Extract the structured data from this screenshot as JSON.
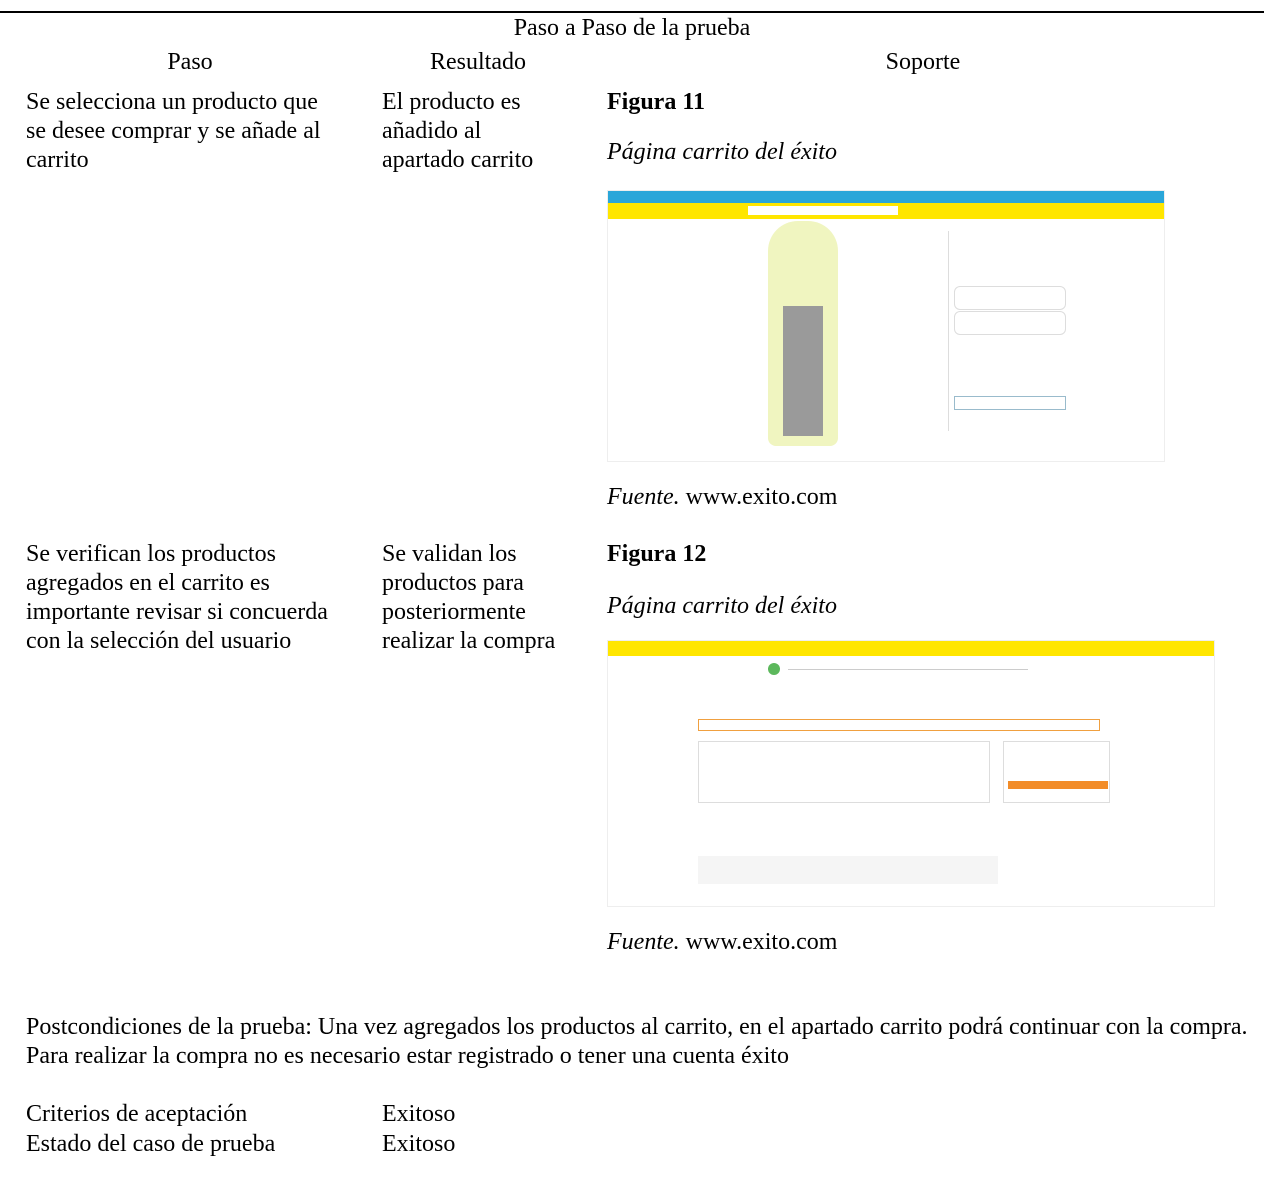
{
  "title": "Paso a Paso de la prueba",
  "table": {
    "headers": [
      "Paso",
      "Resultado",
      "Soporte"
    ],
    "rows": [
      {
        "step": "Se selecciona un producto que se desee comprar y se añade al carrito",
        "result": "El producto es añadido al apartado carrito",
        "figure": {
          "number": "Figura 11",
          "caption": "Página carrito del éxito",
          "source_label": "Fuente.",
          "source": "www.exito.com"
        }
      },
      {
        "step": "Se verifican los productos agregados en el carrito es importante revisar si concuerda con la selección del usuario",
        "result": "Se validan los productos para posteriormente realizar la compra",
        "figure": {
          "number": "Figura 12",
          "caption": "Página carrito del éxito",
          "source_label": "Fuente.",
          "source": "www.exito.com"
        }
      }
    ]
  },
  "postconditions": "Postcondiciones de la prueba: Una vez agregados los productos al carrito, en el apartado carrito podrá continuar con la compra. Para realizar la compra no es necesario estar registrado o tener una cuenta éxito",
  "criteria": [
    {
      "label": "Criterios de aceptación",
      "value": "Exitoso"
    },
    {
      "label": "Estado del caso de prueba",
      "value": "Exitoso"
    }
  ]
}
